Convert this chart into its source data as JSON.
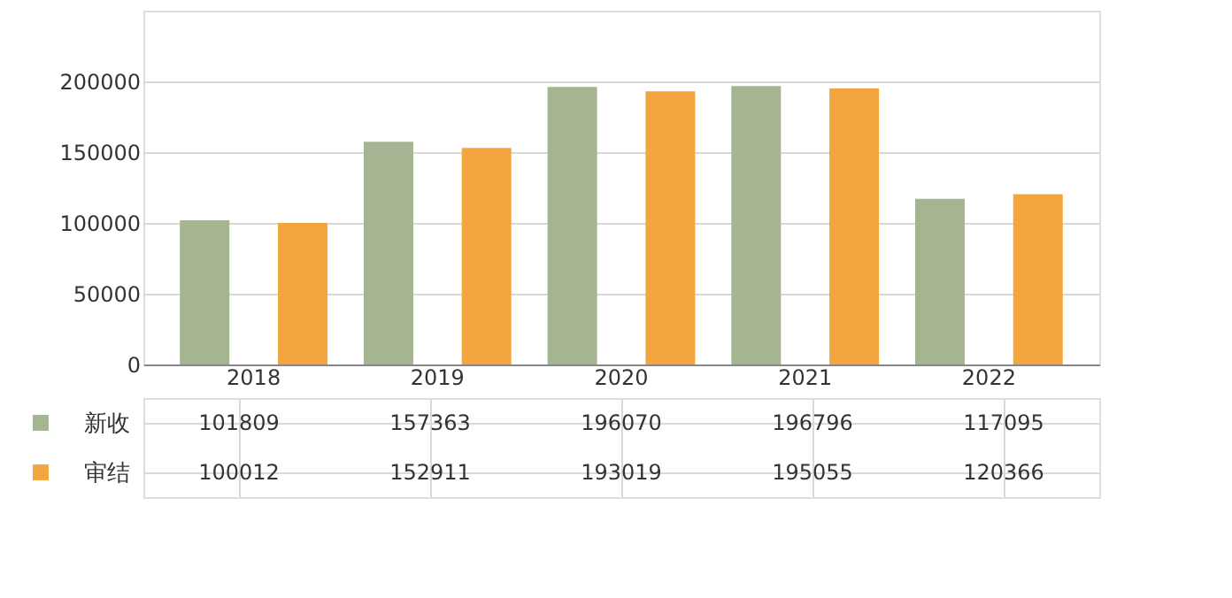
{
  "chart_data": {
    "type": "bar",
    "categories": [
      "2018",
      "2019",
      "2020",
      "2021",
      "2022"
    ],
    "series": [
      {
        "name": "新收",
        "color": "#a5b592",
        "values": [
          101809,
          157363,
          196070,
          196796,
          117095
        ]
      },
      {
        "name": "审结",
        "color": "#f4a540",
        "values": [
          100012,
          152911,
          193019,
          195055,
          120366
        ]
      }
    ],
    "ylim": [
      0,
      250000
    ],
    "yticks": [
      0,
      50000,
      100000,
      150000,
      200000
    ],
    "grid": "y",
    "legend": "bottom",
    "data_labels": true
  }
}
